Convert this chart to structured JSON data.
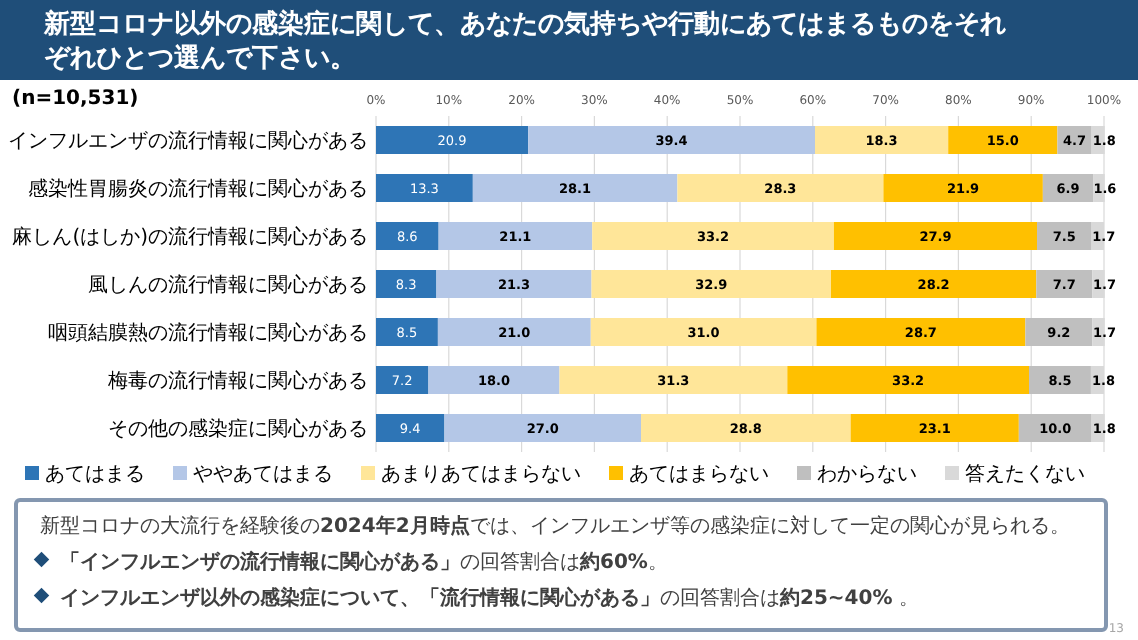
{
  "chart_data": {
    "type": "bar",
    "orientation": "horizontal",
    "stacked": true,
    "title": "新型コロナ以外の感染症に関して、あなたの気持ちや行動にあてはまるものをそれぞれひとつ選んで下さい。",
    "categories": [
      "インフルエンザの流行情報に関心がある",
      "感染性胃腸炎の流行情報に関心がある",
      "麻しん(はしか)の流行情報に関心がある",
      "風しんの流行情報に関心がある",
      "咽頭結膜熱の流行情報に関心がある",
      "梅毒の流行情報に関心がある",
      "その他の感染症に関心がある"
    ],
    "series": [
      {
        "name": "あてはまる",
        "color": "#2e75b6",
        "values": [
          20.9,
          13.3,
          8.6,
          8.3,
          8.5,
          7.2,
          9.4
        ],
        "value_labels": [
          "20.9",
          "13.3",
          "8.6",
          "8.3",
          "8.5",
          "7.2",
          "9.4"
        ]
      },
      {
        "name": "ややあてはまる",
        "color": "#b4c7e7",
        "values": [
          39.4,
          28.1,
          21.1,
          21.3,
          21.0,
          18.0,
          27.0
        ],
        "value_labels": [
          "39.4",
          "28.1",
          "21.1",
          "21.3",
          "21.0",
          "18.0",
          "27.0"
        ]
      },
      {
        "name": "あまりあてはまらない",
        "color": "#ffe699",
        "values": [
          18.3,
          28.3,
          33.2,
          32.9,
          31.0,
          31.3,
          28.8
        ],
        "value_labels": [
          "18.3",
          "28.3",
          "33.2",
          "32.9",
          "31.0",
          "31.3",
          "28.8"
        ]
      },
      {
        "name": "あてはまらない",
        "color": "#ffc000",
        "values": [
          15.0,
          21.9,
          27.9,
          28.2,
          28.7,
          33.2,
          23.1
        ],
        "value_labels": [
          "15.0",
          "21.9",
          "27.9",
          "28.2",
          "28.7",
          "33.2",
          "23.1"
        ]
      },
      {
        "name": "わからない",
        "color": "#bfbfbf",
        "values": [
          4.7,
          6.9,
          7.5,
          7.7,
          9.2,
          8.5,
          10.0
        ],
        "value_labels": [
          "4.7",
          "6.9",
          "7.5",
          "7.7",
          "9.2",
          "8.5",
          "10.0"
        ]
      },
      {
        "name": "答えたくない",
        "color": "#d9d9d9",
        "values": [
          1.8,
          1.6,
          1.7,
          1.7,
          1.7,
          1.8,
          1.8
        ],
        "value_labels": [
          "1.8",
          "1.6",
          "1.7",
          "1.7",
          "1.7",
          "1.8",
          "1.8"
        ]
      }
    ],
    "xlim": [
      0,
      100
    ],
    "xticks": [
      {
        "value": 0,
        "label": "0%"
      },
      {
        "value": 10,
        "label": "10%"
      },
      {
        "value": 20,
        "label": "20%"
      },
      {
        "value": 30,
        "label": "30%"
      },
      {
        "value": 40,
        "label": "40%"
      },
      {
        "value": 50,
        "label": "50%"
      },
      {
        "value": 60,
        "label": "60%"
      },
      {
        "value": 70,
        "label": "70%"
      },
      {
        "value": 80,
        "label": "80%"
      },
      {
        "value": 90,
        "label": "90%"
      },
      {
        "value": 100,
        "label": "100%"
      }
    ],
    "grid": "x",
    "legend": "bottom",
    "annotations": [
      "(n=10,531)",
      "新型コロナの大流行を経験後の**2024年2月時点**では、インフルエンザ等の感染症に対して一定の関心が見られる。",
      "**「インフルエンザの流行情報に関心がある」**の回答割合は**約60%**。",
      "**インフルエンザ以外の感染症について、「流行情報に関心がある」**の回答割合は**約25~40%** 。",
      "13"
    ]
  }
}
